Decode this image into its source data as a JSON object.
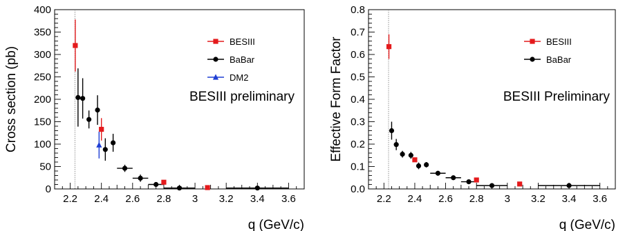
{
  "chart_data": [
    {
      "type": "scatter",
      "panel": "left",
      "xlabel": "q (GeV/c)",
      "ylabel": "Cross section (pb)",
      "annotation": "BESIII preliminary",
      "xlim": [
        2.1,
        3.7
      ],
      "ylim": [
        0,
        400
      ],
      "xticks": [
        "2.2",
        "2.4",
        "2.6",
        "2.8",
        "3",
        "3.2",
        "3.4",
        "3.6"
      ],
      "yticks": [
        "0",
        "50",
        "100",
        "150",
        "200",
        "250",
        "300",
        "350",
        "400"
      ],
      "threshold_x": 2.23,
      "legend_position": "top-right",
      "series": [
        {
          "name": "BESIII",
          "marker": "square",
          "color": "#e41a1c",
          "points": [
            {
              "x": 2.2324,
              "y": 320,
              "yerr": 58,
              "xerr": 0
            },
            {
              "x": 2.4,
              "y": 133,
              "yerr": 25,
              "xerr": 0
            },
            {
              "x": 2.8,
              "y": 15,
              "yerr": 3,
              "xerr": 0
            },
            {
              "x": 3.08,
              "y": 3,
              "yerr": 1,
              "xerr": 0
            }
          ]
        },
        {
          "name": "BaBar",
          "marker": "circle",
          "color": "#000000",
          "points": [
            {
              "x": 2.25,
              "y": 204,
              "yerr": 65,
              "xerr": 0
            },
            {
              "x": 2.28,
              "y": 202,
              "yerr": 45,
              "xerr": 0
            },
            {
              "x": 2.32,
              "y": 155,
              "yerr": 20,
              "xerr": 0
            },
            {
              "x": 2.375,
              "y": 176,
              "yerr": 33,
              "xerr": 0
            },
            {
              "x": 2.425,
              "y": 88,
              "yerr": 25,
              "xerr": 0
            },
            {
              "x": 2.475,
              "y": 103,
              "yerr": 20,
              "xerr": 0
            },
            {
              "x": 2.55,
              "y": 46,
              "yerr": 8,
              "xerr": 0.05
            },
            {
              "x": 2.65,
              "y": 24,
              "yerr": 8,
              "xerr": 0.05
            },
            {
              "x": 2.75,
              "y": 10,
              "yerr": 5,
              "xerr": 0.05
            },
            {
              "x": 2.9,
              "y": 2,
              "yerr": 2,
              "xerr": 0.1
            },
            {
              "x": 3.4,
              "y": 2,
              "yerr": 1,
              "xerr": 0.2
            }
          ]
        },
        {
          "name": "DM2",
          "marker": "triangle",
          "color": "#1f3fd4",
          "points": [
            {
              "x": 2.385,
              "y": 98,
              "yerr": 30,
              "xerr": 0
            }
          ]
        }
      ]
    },
    {
      "type": "scatter",
      "panel": "right",
      "xlabel": "q (GeV/c)",
      "ylabel": "Effective Form Factor",
      "annotation": "BESIII Preliminary",
      "xlim": [
        2.1,
        3.7
      ],
      "ylim": [
        0,
        0.8
      ],
      "xticks": [
        "2.2",
        "2.4",
        "2.6",
        "2.8",
        "3",
        "3.2",
        "3.4",
        "3.6"
      ],
      "yticks": [
        "0.0",
        "0.1",
        "0.2",
        "0.3",
        "0.4",
        "0.5",
        "0.6",
        "0.7",
        "0.8"
      ],
      "threshold_x": 2.23,
      "legend_position": "top-right",
      "series": [
        {
          "name": "BESIII",
          "marker": "square",
          "color": "#e41a1c",
          "points": [
            {
              "x": 2.2324,
              "y": 0.635,
              "yerr": 0.055,
              "xerr": 0
            },
            {
              "x": 2.4,
              "y": 0.13,
              "yerr": 0.01,
              "xerr": 0
            },
            {
              "x": 2.8,
              "y": 0.04,
              "yerr": 0.004,
              "xerr": 0
            },
            {
              "x": 3.08,
              "y": 0.022,
              "yerr": 0.004,
              "xerr": 0
            }
          ]
        },
        {
          "name": "BaBar",
          "marker": "circle",
          "color": "#000000",
          "points": [
            {
              "x": 2.25,
              "y": 0.26,
              "yerr": 0.04,
              "xerr": 0
            },
            {
              "x": 2.28,
              "y": 0.198,
              "yerr": 0.025,
              "xerr": 0
            },
            {
              "x": 2.32,
              "y": 0.155,
              "yerr": 0.015,
              "xerr": 0
            },
            {
              "x": 2.375,
              "y": 0.15,
              "yerr": 0.015,
              "xerr": 0
            },
            {
              "x": 2.425,
              "y": 0.103,
              "yerr": 0.015,
              "xerr": 0
            },
            {
              "x": 2.475,
              "y": 0.108,
              "yerr": 0.012,
              "xerr": 0
            },
            {
              "x": 2.55,
              "y": 0.07,
              "yerr": 0.006,
              "xerr": 0.05
            },
            {
              "x": 2.65,
              "y": 0.05,
              "yerr": 0.006,
              "xerr": 0.05
            },
            {
              "x": 2.75,
              "y": 0.032,
              "yerr": 0.006,
              "xerr": 0.05
            },
            {
              "x": 2.9,
              "y": 0.015,
              "yerr": 0.004,
              "xerr": 0.1
            },
            {
              "x": 3.4,
              "y": 0.015,
              "yerr": 0.004,
              "xerr": 0.2
            }
          ]
        }
      ]
    }
  ]
}
